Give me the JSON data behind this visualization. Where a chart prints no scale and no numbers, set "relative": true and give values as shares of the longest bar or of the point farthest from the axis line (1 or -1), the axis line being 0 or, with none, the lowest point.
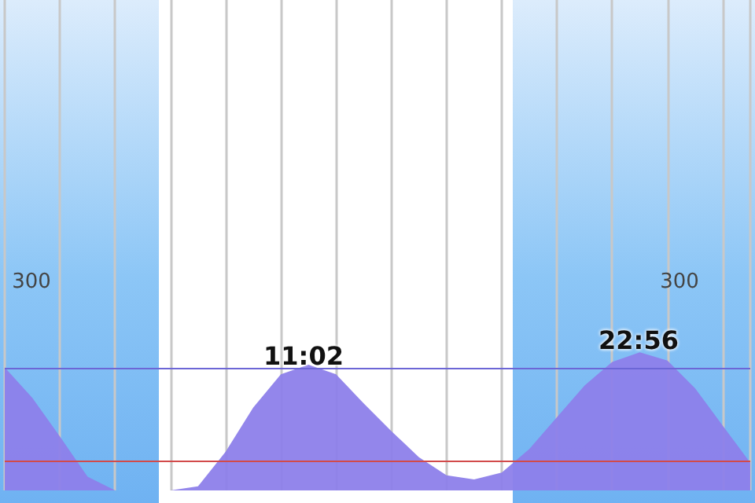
{
  "chart_data": {
    "type": "area",
    "relative": true,
    "categories": [
      null,
      null,
      null,
      null,
      null,
      null,
      null,
      null,
      null,
      null,
      null,
      null,
      null,
      null,
      null,
      null,
      null,
      null,
      null,
      null,
      null,
      null,
      null,
      null,
      null,
      null,
      null,
      null
    ],
    "series": [
      {
        "color": "#8d80ea",
        "values": [
          0.89,
          0.67,
          0.39,
          0.1,
          0,
          0,
          0,
          0.03,
          0.28,
          0.6,
          0.84,
          0.91,
          0.84,
          0.63,
          0.43,
          0.24,
          0.11,
          0.08,
          0.13,
          0.3,
          0.53,
          0.76,
          0.93,
          1,
          0.94,
          0.74,
          0.47,
          0.2
        ]
      }
    ],
    "grid": "x",
    "ref_lines": [
      {
        "axis": "y",
        "value": 0.89,
        "color": "#6c66d6"
      },
      {
        "axis": "y",
        "value": 0.21,
        "color": "#d24a4a"
      }
    ],
    "annotations": [
      "11:02",
      "22:56",
      "300",
      "300"
    ]
  }
}
